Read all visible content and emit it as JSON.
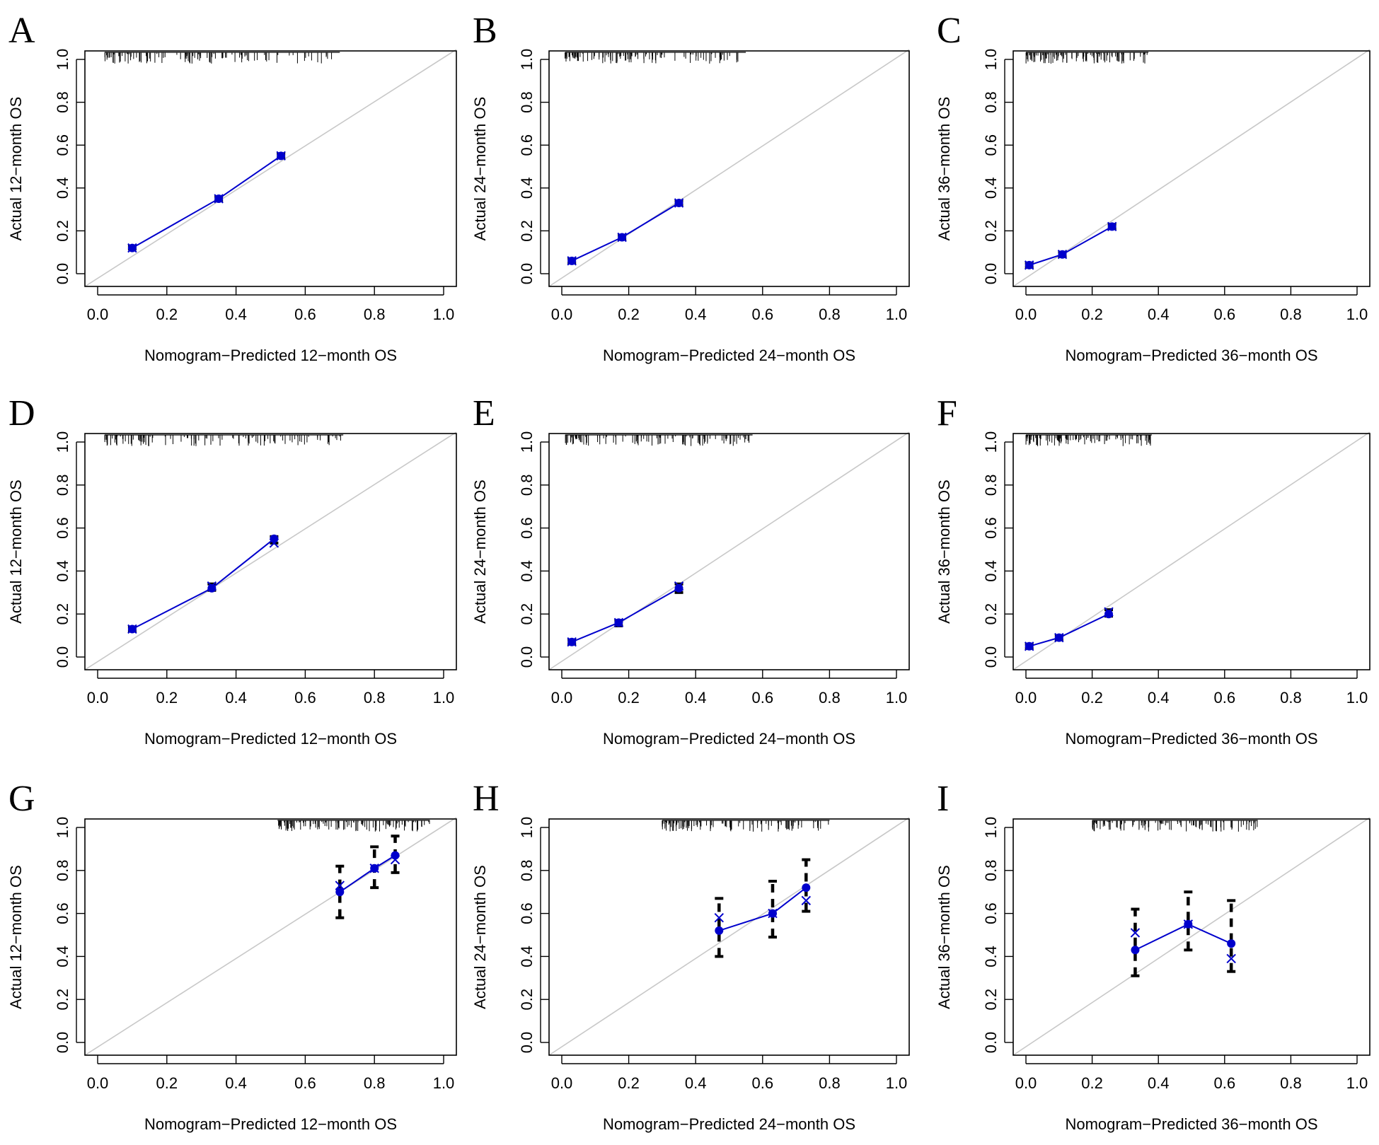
{
  "figure": {
    "colors": {
      "calibration": "#0000cc",
      "ideal": "#c8c8c8",
      "error_bars": "#000000",
      "frame": "#000000",
      "rug": "#000000"
    },
    "axis_ticks": [
      "0.0",
      "0.2",
      "0.4",
      "0.6",
      "0.8",
      "1.0"
    ]
  },
  "chart_data": [
    {
      "panel": "A",
      "type": "line",
      "xlabel": "Nomogram−Predicted 12−month OS",
      "ylabel": "Actual 12−month OS",
      "xlim": [
        0,
        1
      ],
      "ylim": [
        0,
        1
      ],
      "series": [
        {
          "name": "observed",
          "x": [
            0.1,
            0.35,
            0.53
          ],
          "y": [
            0.12,
            0.35,
            0.55
          ]
        },
        {
          "name": "bias-corrected",
          "x": [
            0.1,
            0.35,
            0.53
          ],
          "y": [
            0.12,
            0.35,
            0.55
          ]
        }
      ],
      "error_bars": [
        [
          0.115,
          0.13
        ],
        [
          0.34,
          0.36
        ],
        [
          0.54,
          0.56
        ]
      ],
      "rug_range": [
        0.02,
        0.7
      ]
    },
    {
      "panel": "B",
      "type": "line",
      "xlabel": "Nomogram−Predicted 24−month OS",
      "ylabel": "Actual 24−month OS",
      "xlim": [
        0,
        1
      ],
      "ylim": [
        0,
        1
      ],
      "series": [
        {
          "name": "observed",
          "x": [
            0.03,
            0.18,
            0.35
          ],
          "y": [
            0.06,
            0.17,
            0.33
          ]
        },
        {
          "name": "bias-corrected",
          "x": [
            0.03,
            0.18,
            0.35
          ],
          "y": [
            0.06,
            0.17,
            0.33
          ]
        }
      ],
      "error_bars": [
        [
          0.05,
          0.07
        ],
        [
          0.16,
          0.18
        ],
        [
          0.32,
          0.34
        ]
      ],
      "rug_range": [
        0.01,
        0.55
      ]
    },
    {
      "panel": "C",
      "type": "line",
      "xlabel": "Nomogram−Predicted 36−month OS",
      "ylabel": "Actual 36−month OS",
      "xlim": [
        0,
        1
      ],
      "ylim": [
        0,
        1
      ],
      "series": [
        {
          "name": "observed",
          "x": [
            0.01,
            0.11,
            0.26
          ],
          "y": [
            0.04,
            0.09,
            0.22
          ]
        },
        {
          "name": "bias-corrected",
          "x": [
            0.01,
            0.11,
            0.26
          ],
          "y": [
            0.04,
            0.09,
            0.22
          ]
        }
      ],
      "error_bars": [
        [
          0.03,
          0.05
        ],
        [
          0.08,
          0.1
        ],
        [
          0.21,
          0.23
        ]
      ],
      "rug_range": [
        0.0,
        0.37
      ]
    },
    {
      "panel": "D",
      "type": "line",
      "xlabel": "Nomogram−Predicted 12−month OS",
      "ylabel": "Actual 12−month OS",
      "xlim": [
        0,
        1
      ],
      "ylim": [
        0,
        1
      ],
      "series": [
        {
          "name": "observed",
          "x": [
            0.1,
            0.33,
            0.51
          ],
          "y": [
            0.13,
            0.32,
            0.55
          ]
        },
        {
          "name": "bias-corrected",
          "x": [
            0.1,
            0.33,
            0.51
          ],
          "y": [
            0.13,
            0.33,
            0.53
          ]
        }
      ],
      "error_bars": [
        [
          0.12,
          0.14
        ],
        [
          0.31,
          0.34
        ],
        [
          0.53,
          0.56
        ]
      ],
      "rug_range": [
        0.02,
        0.71
      ]
    },
    {
      "panel": "E",
      "type": "line",
      "xlabel": "Nomogram−Predicted 24−month OS",
      "ylabel": "Actual 24−month OS",
      "xlim": [
        0,
        1
      ],
      "ylim": [
        0,
        1
      ],
      "series": [
        {
          "name": "observed",
          "x": [
            0.03,
            0.17,
            0.35
          ],
          "y": [
            0.07,
            0.16,
            0.32
          ]
        },
        {
          "name": "bias-corrected",
          "x": [
            0.03,
            0.17,
            0.35
          ],
          "y": [
            0.07,
            0.16,
            0.33
          ]
        }
      ],
      "error_bars": [
        [
          0.06,
          0.08
        ],
        [
          0.145,
          0.17
        ],
        [
          0.3,
          0.34
        ]
      ],
      "rug_range": [
        0.01,
        0.57
      ]
    },
    {
      "panel": "F",
      "type": "line",
      "xlabel": "Nomogram−Predicted 36−month OS",
      "ylabel": "Actual 36−month OS",
      "xlim": [
        0,
        1
      ],
      "ylim": [
        0,
        1
      ],
      "series": [
        {
          "name": "observed",
          "x": [
            0.01,
            0.1,
            0.25
          ],
          "y": [
            0.05,
            0.09,
            0.2
          ]
        },
        {
          "name": "bias-corrected",
          "x": [
            0.01,
            0.1,
            0.25
          ],
          "y": [
            0.05,
            0.09,
            0.21
          ]
        }
      ],
      "error_bars": [
        [
          0.04,
          0.06
        ],
        [
          0.08,
          0.1
        ],
        [
          0.19,
          0.22
        ]
      ],
      "rug_range": [
        0.0,
        0.38
      ]
    },
    {
      "panel": "G",
      "type": "line",
      "xlabel": "Nomogram−Predicted 12−month OS",
      "ylabel": "Actual 12−month OS",
      "xlim": [
        0,
        1
      ],
      "ylim": [
        0,
        1
      ],
      "series": [
        {
          "name": "observed",
          "x": [
            0.7,
            0.8,
            0.86
          ],
          "y": [
            0.7,
            0.81,
            0.87
          ]
        },
        {
          "name": "bias-corrected",
          "x": [
            0.7,
            0.8,
            0.86
          ],
          "y": [
            0.73,
            0.81,
            0.85
          ]
        }
      ],
      "error_bars": [
        [
          0.58,
          0.82
        ],
        [
          0.72,
          0.91
        ],
        [
          0.79,
          0.96
        ]
      ],
      "rug_range": [
        0.52,
        0.96
      ]
    },
    {
      "panel": "H",
      "type": "line",
      "xlabel": "Nomogram−Predicted 24−month OS",
      "ylabel": "Actual 24−month OS",
      "xlim": [
        0,
        1
      ],
      "ylim": [
        0,
        1
      ],
      "series": [
        {
          "name": "observed",
          "x": [
            0.47,
            0.63,
            0.73
          ],
          "y": [
            0.52,
            0.6,
            0.72
          ]
        },
        {
          "name": "bias-corrected",
          "x": [
            0.47,
            0.63,
            0.73
          ],
          "y": [
            0.58,
            0.6,
            0.66
          ]
        }
      ],
      "error_bars": [
        [
          0.4,
          0.67
        ],
        [
          0.49,
          0.75
        ],
        [
          0.61,
          0.85
        ]
      ],
      "rug_range": [
        0.3,
        0.8
      ]
    },
    {
      "panel": "I",
      "type": "line",
      "xlabel": "Nomogram−Predicted 36−month OS",
      "ylabel": "Actual 36−month OS",
      "xlim": [
        0,
        1
      ],
      "ylim": [
        0,
        1
      ],
      "series": [
        {
          "name": "observed",
          "x": [
            0.33,
            0.49,
            0.62
          ],
          "y": [
            0.43,
            0.55,
            0.46
          ]
        },
        {
          "name": "bias-corrected",
          "x": [
            0.33,
            0.49,
            0.62
          ],
          "y": [
            0.51,
            0.55,
            0.39
          ]
        }
      ],
      "error_bars": [
        [
          0.31,
          0.62
        ],
        [
          0.43,
          0.7
        ],
        [
          0.33,
          0.66
        ]
      ],
      "rug_range": [
        0.2,
        0.7
      ]
    }
  ]
}
